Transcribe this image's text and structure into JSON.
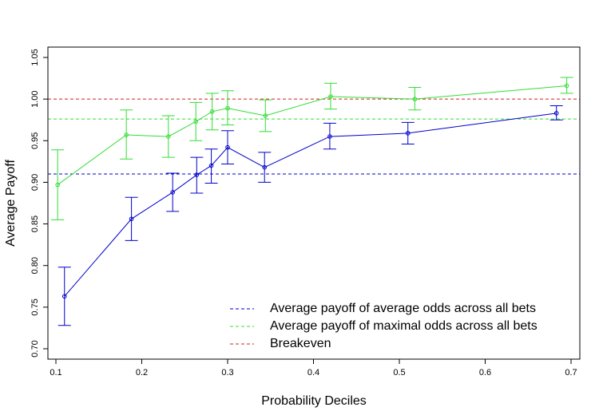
{
  "chart_data": {
    "type": "line",
    "title": "",
    "xlabel": "Probability Deciles",
    "ylabel": "Average Payoff",
    "xlim": [
      0.1,
      0.7
    ],
    "ylim": [
      0.7,
      1.05
    ],
    "x_ticks": [
      "0.1",
      "0.2",
      "0.3",
      "0.4",
      "0.5",
      "0.6",
      "0.7"
    ],
    "y_ticks": [
      "0.70",
      "0.75",
      "0.80",
      "0.85",
      "0.90",
      "0.95",
      "1.00",
      "1.05"
    ],
    "grid": false,
    "legend_position": "bottom-right",
    "series": [
      {
        "key": "average",
        "color": "#0000cc",
        "x": [
          0.11,
          0.188,
          0.236,
          0.264,
          0.281,
          0.3,
          0.343,
          0.419,
          0.51,
          0.683
        ],
        "y": [
          0.763,
          0.856,
          0.888,
          0.909,
          0.92,
          0.942,
          0.918,
          0.955,
          0.959,
          0.983
        ],
        "y_low": [
          0.728,
          0.83,
          0.865,
          0.887,
          0.899,
          0.922,
          0.9,
          0.94,
          0.946,
          0.975
        ],
        "y_high": [
          0.798,
          0.882,
          0.911,
          0.93,
          0.94,
          0.962,
          0.936,
          0.971,
          0.972,
          0.992
        ]
      },
      {
        "key": "maximal",
        "color": "#33dd33",
        "x": [
          0.102,
          0.182,
          0.231,
          0.263,
          0.282,
          0.3,
          0.344,
          0.42,
          0.518,
          0.695
        ],
        "y": [
          0.897,
          0.957,
          0.955,
          0.973,
          0.985,
          0.989,
          0.98,
          1.003,
          1.0,
          1.016
        ],
        "y_low": [
          0.855,
          0.928,
          0.93,
          0.95,
          0.963,
          0.969,
          0.961,
          0.988,
          0.987,
          1.007
        ],
        "y_high": [
          0.939,
          0.987,
          0.98,
          0.996,
          1.007,
          1.01,
          0.999,
          1.019,
          1.014,
          1.026
        ]
      }
    ],
    "reference_lines": [
      {
        "key": "avg",
        "y": 0.91,
        "color": "#0000cc"
      },
      {
        "key": "max",
        "y": 0.976,
        "color": "#33dd33"
      },
      {
        "key": "breakeven",
        "y": 1.0,
        "color": "#cc2222"
      }
    ],
    "legend": [
      {
        "key": "avg",
        "label": "Average payoff of average odds across all bets",
        "color": "#0000cc"
      },
      {
        "key": "max",
        "label": "Average payoff of maximal odds across all bets",
        "color": "#33dd33"
      },
      {
        "key": "breakeven",
        "label": "Breakeven",
        "color": "#cc2222"
      }
    ]
  }
}
